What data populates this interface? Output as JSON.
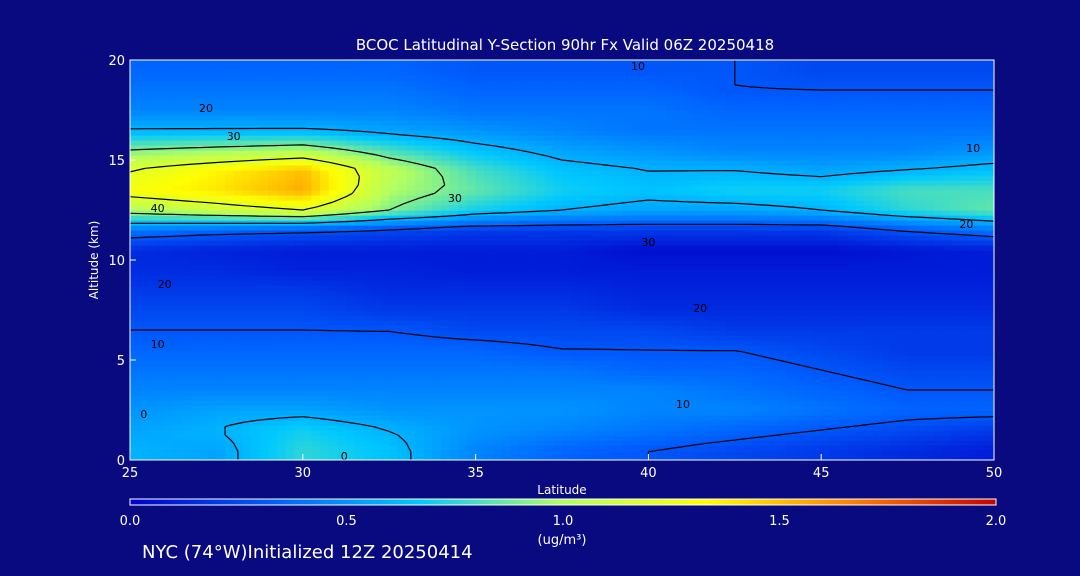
{
  "chart_data": {
    "type": "heatmap",
    "title": "BCOC Latitudinal Y-Section 90hr  Fx Valid 06Z 20250418",
    "xlabel": "Latitude",
    "ylabel": "Altitude (km)",
    "xlim": [
      25,
      50
    ],
    "ylim": [
      0,
      20
    ],
    "xticks": [
      25,
      30,
      35,
      40,
      45,
      50
    ],
    "yticks": [
      0,
      5,
      10,
      15,
      20
    ],
    "colorbar": {
      "min": 0.0,
      "max": 2.0,
      "ticks": [
        "0.0",
        "0.5",
        "1.0",
        "1.5",
        "2.0"
      ],
      "label": "(ug/m³)",
      "colors": [
        "#0000c8",
        "#0060ff",
        "#00c8ff",
        "#b4ff60",
        "#ffff00",
        "#ff8000",
        "#c80000"
      ]
    },
    "grid": false,
    "x": [
      25,
      27.5,
      30,
      32.5,
      35,
      37.5,
      40,
      42.5,
      45,
      47.5,
      50
    ],
    "y": [
      0.5,
      1.5,
      2.5,
      3.5,
      4.5,
      5.5,
      6.5,
      7.5,
      8.5,
      9.5,
      10.5,
      11.5,
      12.5,
      13.5,
      14.5,
      15.5,
      16.5,
      17.5,
      18.5,
      19.5
    ],
    "z": [
      [
        0.6,
        0.55,
        0.75,
        0.65,
        0.45,
        0.35,
        0.3,
        0.25,
        0.2,
        0.15,
        0.1
      ],
      [
        0.55,
        0.6,
        0.7,
        0.6,
        0.5,
        0.45,
        0.4,
        0.35,
        0.3,
        0.25,
        0.2
      ],
      [
        0.5,
        0.55,
        0.55,
        0.5,
        0.5,
        0.5,
        0.45,
        0.45,
        0.4,
        0.35,
        0.35
      ],
      [
        0.45,
        0.45,
        0.45,
        0.45,
        0.45,
        0.45,
        0.45,
        0.4,
        0.35,
        0.3,
        0.3
      ],
      [
        0.4,
        0.4,
        0.4,
        0.4,
        0.4,
        0.4,
        0.35,
        0.35,
        0.3,
        0.25,
        0.25
      ],
      [
        0.35,
        0.35,
        0.35,
        0.35,
        0.35,
        0.3,
        0.3,
        0.3,
        0.25,
        0.2,
        0.2
      ],
      [
        0.3,
        0.3,
        0.3,
        0.3,
        0.25,
        0.25,
        0.25,
        0.2,
        0.2,
        0.2,
        0.2
      ],
      [
        0.25,
        0.25,
        0.25,
        0.2,
        0.2,
        0.2,
        0.15,
        0.15,
        0.15,
        0.15,
        0.15
      ],
      [
        0.2,
        0.2,
        0.2,
        0.15,
        0.15,
        0.15,
        0.12,
        0.12,
        0.12,
        0.12,
        0.12
      ],
      [
        0.15,
        0.15,
        0.12,
        0.12,
        0.1,
        0.1,
        0.1,
        0.1,
        0.1,
        0.1,
        0.1
      ],
      [
        0.15,
        0.12,
        0.1,
        0.1,
        0.1,
        0.1,
        0.05,
        0.05,
        0.05,
        0.08,
        0.1
      ],
      [
        0.4,
        0.35,
        0.3,
        0.25,
        0.2,
        0.2,
        0.2,
        0.2,
        0.2,
        0.3,
        0.4
      ],
      [
        1.0,
        1.1,
        1.2,
        0.9,
        0.7,
        0.6,
        0.55,
        0.55,
        0.6,
        0.75,
        0.85
      ],
      [
        1.3,
        1.4,
        1.55,
        1.0,
        0.85,
        0.7,
        0.65,
        0.7,
        0.7,
        0.8,
        0.8
      ],
      [
        1.2,
        1.35,
        1.5,
        1.05,
        0.8,
        0.65,
        0.6,
        0.6,
        0.55,
        0.6,
        0.65
      ],
      [
        0.9,
        0.95,
        1.0,
        0.8,
        0.65,
        0.55,
        0.5,
        0.45,
        0.45,
        0.45,
        0.5
      ],
      [
        0.6,
        0.6,
        0.6,
        0.55,
        0.5,
        0.45,
        0.4,
        0.4,
        0.4,
        0.4,
        0.4
      ],
      [
        0.45,
        0.45,
        0.45,
        0.45,
        0.4,
        0.4,
        0.4,
        0.35,
        0.35,
        0.35,
        0.35
      ],
      [
        0.4,
        0.4,
        0.4,
        0.4,
        0.35,
        0.35,
        0.35,
        0.3,
        0.3,
        0.3,
        0.3
      ],
      [
        0.35,
        0.35,
        0.35,
        0.35,
        0.3,
        0.3,
        0.3,
        0.3,
        0.25,
        0.25,
        0.25
      ]
    ],
    "contour_labels": [
      {
        "text": "10",
        "lat": 39.7,
        "alt": 19.7
      },
      {
        "text": "20",
        "lat": 27.2,
        "alt": 17.6
      },
      {
        "text": "30",
        "lat": 28.0,
        "alt": 16.2
      },
      {
        "text": "10",
        "lat": 49.4,
        "alt": 15.6
      },
      {
        "text": "40",
        "lat": 25.8,
        "alt": 12.6
      },
      {
        "text": "30",
        "lat": 34.4,
        "alt": 13.1
      },
      {
        "text": "20",
        "lat": 49.2,
        "alt": 11.8
      },
      {
        "text": "30",
        "lat": 40.0,
        "alt": 10.9
      },
      {
        "text": "20",
        "lat": 26.0,
        "alt": 8.8
      },
      {
        "text": "20",
        "lat": 41.5,
        "alt": 7.6
      },
      {
        "text": "10",
        "lat": 25.8,
        "alt": 5.8
      },
      {
        "text": "10",
        "lat": 41.0,
        "alt": 2.8
      },
      {
        "text": "0",
        "lat": 25.4,
        "alt": 2.3
      },
      {
        "text": "0",
        "lat": 31.2,
        "alt": 0.2
      }
    ]
  },
  "footer": "NYC (74°W)Initialized 12Z 20250414"
}
